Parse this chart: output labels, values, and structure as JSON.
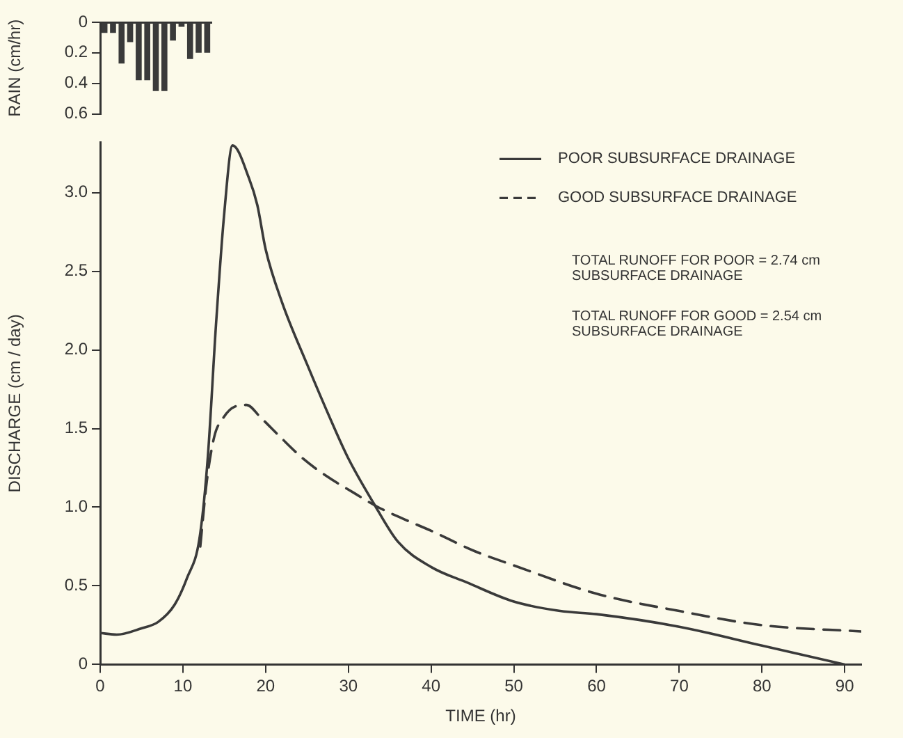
{
  "chart_data": [
    {
      "type": "bar",
      "ylabel": "RAIN (cm/hr)",
      "categories": [
        null,
        null,
        null,
        null,
        null,
        null,
        null,
        null,
        null,
        null,
        null,
        null,
        null
      ],
      "series": [
        {
          "color": "#3a3a3a",
          "values": [
            0.07,
            0.07,
            0.27,
            0.13,
            0.38,
            0.38,
            0.45,
            0.45,
            0.12,
            0.03,
            0.24,
            0.2,
            0.2
          ]
        }
      ],
      "ylim": [
        0.6,
        0
      ],
      "yticks": [
        0,
        0.2,
        0.4,
        0.6
      ],
      "tick_labels": "y",
      "grid": false,
      "legend": false
    },
    {
      "type": "line",
      "xlabel": "TIME (hr)",
      "ylabel": "DISCHARGE (cm / day)",
      "series": [
        {
          "name": "POOR SUBSURFACE DRAINAGE",
          "color": "#3a3a3a",
          "line_style": "solid",
          "x": [
            0,
            2,
            5,
            7,
            9,
            10.5,
            12,
            13,
            14,
            15,
            16,
            18,
            19,
            20,
            22,
            25,
            28,
            30,
            33,
            36,
            40,
            44.4,
            50,
            55.6,
            60,
            70,
            80,
            90
          ],
          "values": [
            0.2,
            0.19,
            0.23,
            0.27,
            0.38,
            0.55,
            0.8,
            1.31,
            2.16,
            2.87,
            3.3,
            3.09,
            2.92,
            2.64,
            2.3,
            1.91,
            1.54,
            1.31,
            1.03,
            0.78,
            0.62,
            0.52,
            0.4,
            0.34,
            0.32,
            0.24,
            0.12,
            0
          ]
        },
        {
          "name": "GOOD SUBSURFACE DRAINAGE",
          "color": "#3a3a3a",
          "line_style": "dashed",
          "x": [
            12.1,
            12.9,
            13.8,
            14.9,
            16.3,
            17.7,
            19.4,
            21.7,
            24.5,
            27.3,
            30.7,
            33.6,
            36.9,
            40,
            45.3,
            50,
            60,
            70,
            80,
            92
          ],
          "values": [
            0.75,
            1.17,
            1.45,
            1.57,
            1.64,
            1.65,
            1.57,
            1.45,
            1.31,
            1.2,
            1.09,
            1,
            0.92,
            0.85,
            0.72,
            0.63,
            0.45,
            0.34,
            0.25,
            0.21
          ]
        }
      ],
      "xlim": [
        0,
        92
      ],
      "xticks": [
        0,
        10,
        20,
        30,
        40,
        50,
        60,
        70,
        80,
        90
      ],
      "ylim": [
        0,
        3.32
      ],
      "yticks": [
        0,
        0.5,
        {
          "value": 1,
          "label": "1.0"
        },
        1.5,
        {
          "value": 2,
          "label": "2.0"
        },
        2.5,
        {
          "value": 3,
          "label": "3.0"
        }
      ],
      "grid": false,
      "legend": "top right",
      "marker": "none",
      "annotations": [
        "TOTAL RUNOFF FOR POOR = 2.74 cm\nSUBSURFACE DRAINAGE",
        "TOTAL RUNOFF FOR GOOD = 2.54 cm\nSUBSURFACE DRAINAGE"
      ]
    }
  ]
}
